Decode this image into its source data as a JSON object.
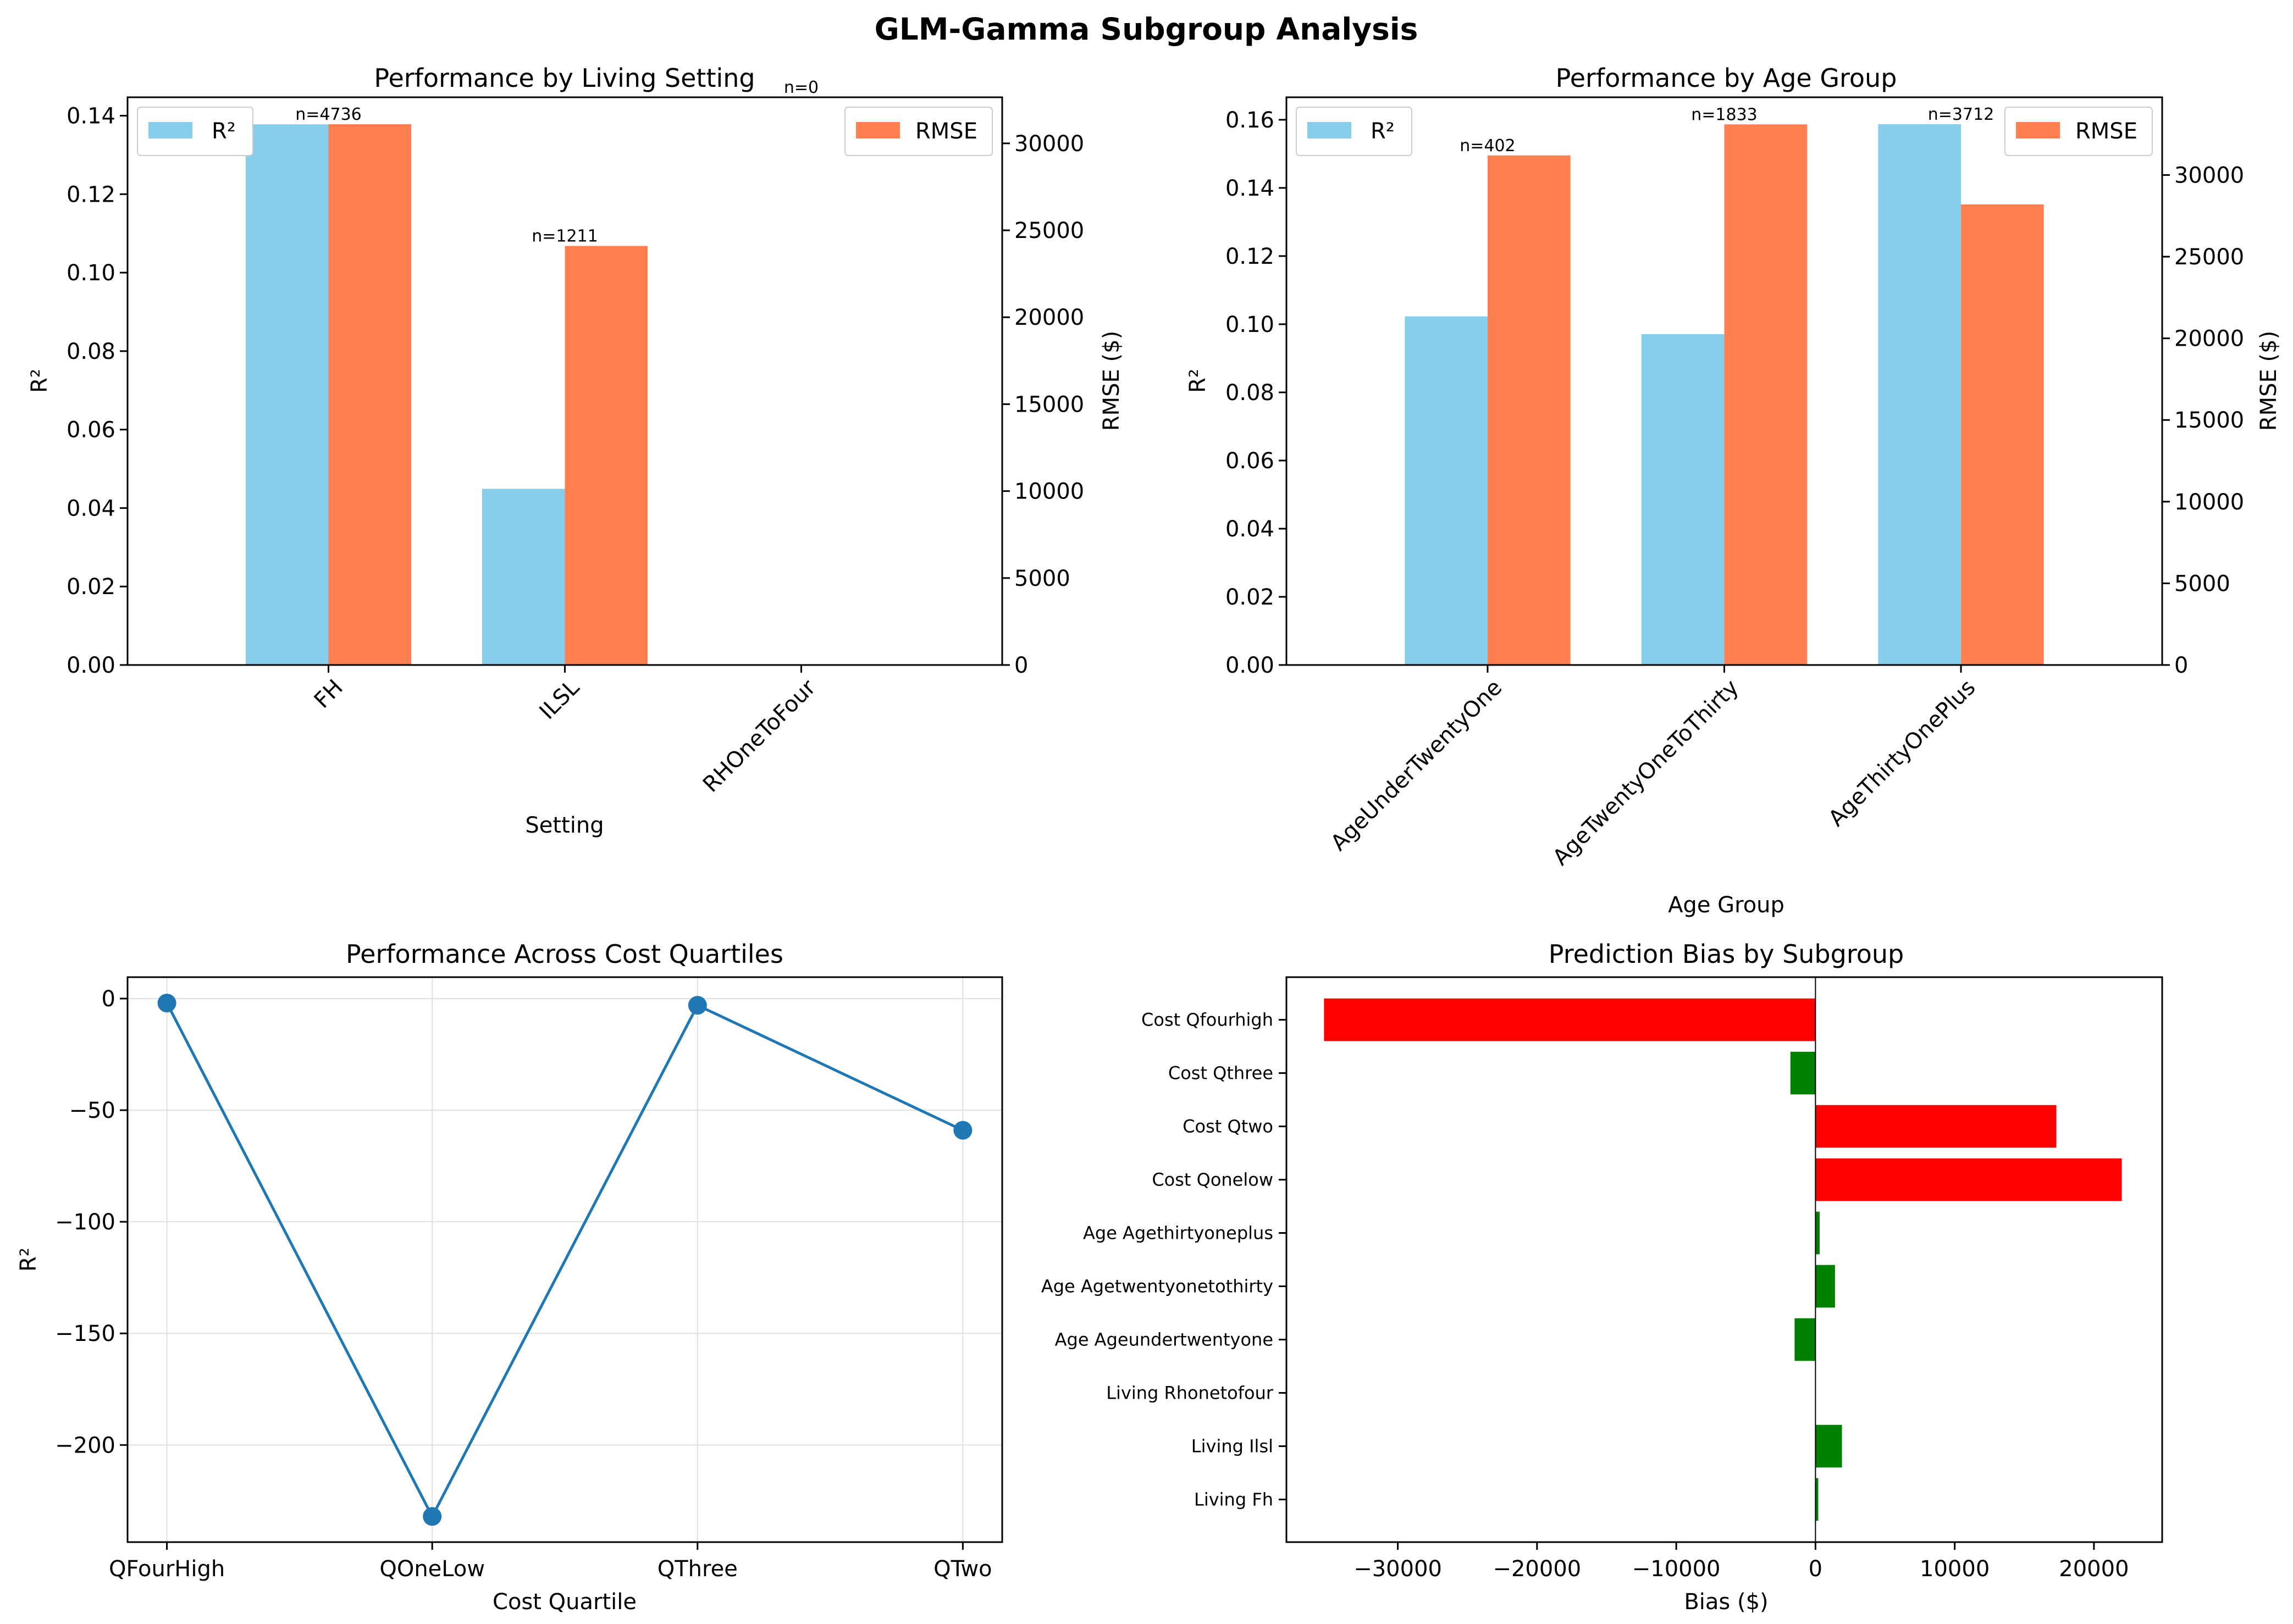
{
  "figure": {
    "title": "GLM-Gamma Subgroup Analysis"
  },
  "colors": {
    "r2": "#87CEEB",
    "rmse": "#FF7F50",
    "line": "#1f77b4",
    "bias_pos": "#ff0000",
    "bias_neg": "#008000"
  },
  "chart_data": [
    {
      "type": "bar",
      "title": "Performance by Living Setting",
      "xlabel": "Setting",
      "ylabel_left": "R²",
      "ylabel_right": "RMSE ($)",
      "categories": [
        "FH",
        "ILSL",
        "RHOneToFour"
      ],
      "annotations": [
        "n=4736",
        "n=1211",
        "n=0"
      ],
      "series": [
        {
          "name": "R²",
          "axis": "left",
          "values": [
            0.1378,
            0.0449,
            0
          ]
        },
        {
          "name": "RMSE",
          "axis": "right",
          "values": [
            31100,
            24100,
            0
          ]
        }
      ],
      "ylim_left": [
        0,
        0.1447
      ],
      "ylim_right": [
        0,
        32650
      ],
      "yticks_left": [
        "0.00",
        "0.02",
        "0.04",
        "0.06",
        "0.08",
        "0.10",
        "0.12",
        "0.14"
      ],
      "yticks_right": [
        "0",
        "5000",
        "10000",
        "15000",
        "20000",
        "25000",
        "30000"
      ],
      "legend_left": "upper-left",
      "legend_right": "upper-right",
      "grid": false
    },
    {
      "type": "bar",
      "title": "Performance by Age Group",
      "xlabel": "Age Group",
      "ylabel_left": "R²",
      "ylabel_right": "RMSE ($)",
      "categories": [
        "AgeUnderTwentyOne",
        "AgeTwentyOneToThirty",
        "AgeThirtyOnePlus"
      ],
      "annotations": [
        "n=402",
        "n=1833",
        "n=3712"
      ],
      "series": [
        {
          "name": "R²",
          "axis": "left",
          "values": [
            0.1023,
            0.0971,
            0.1587
          ]
        },
        {
          "name": "RMSE",
          "axis": "right",
          "values": [
            31200,
            33100,
            28200
          ]
        }
      ],
      "ylim_left": [
        0,
        0.1666
      ],
      "ylim_right": [
        0,
        34760
      ],
      "yticks_left": [
        "0.00",
        "0.02",
        "0.04",
        "0.06",
        "0.08",
        "0.10",
        "0.12",
        "0.14",
        "0.16"
      ],
      "yticks_right": [
        "0",
        "5000",
        "10000",
        "15000",
        "20000",
        "25000",
        "30000"
      ],
      "legend_left": "upper-left",
      "legend_right": "upper-right",
      "grid": false
    },
    {
      "type": "line",
      "title": "Performance Across Cost Quartiles",
      "xlabel": "Cost Quartile",
      "ylabel": "R²",
      "categories": [
        "QFourHigh",
        "QOneLow",
        "QThree",
        "QTwo"
      ],
      "values": [
        -2,
        -232,
        -3,
        -59
      ],
      "ylim": [
        -243.5,
        9.6
      ],
      "yticks": [
        "0",
        "−50",
        "−100",
        "−150",
        "−200"
      ],
      "grid": true
    },
    {
      "type": "bar",
      "orientation": "horizontal",
      "title": "Prediction Bias by Subgroup",
      "xlabel": "Bias ($)",
      "categories": [
        "Living Fh",
        "Living Ilsl",
        "Living Rhonetofour",
        "Age Ageundertwentyone",
        "Age Agetwentyonetothirty",
        "Age Agethirtyoneplus",
        "Cost Qonelow",
        "Cost Qtwo",
        "Cost Qthree",
        "Cost Qfourhigh"
      ],
      "values": [
        200,
        1900,
        0,
        -1500,
        1400,
        300,
        22000,
        17300,
        -1800,
        -35300
      ],
      "xlim": [
        -38000,
        24900
      ],
      "xticks": [
        "−30000",
        "−20000",
        "−10000",
        "0",
        "10000",
        "20000"
      ],
      "grid": false
    }
  ]
}
